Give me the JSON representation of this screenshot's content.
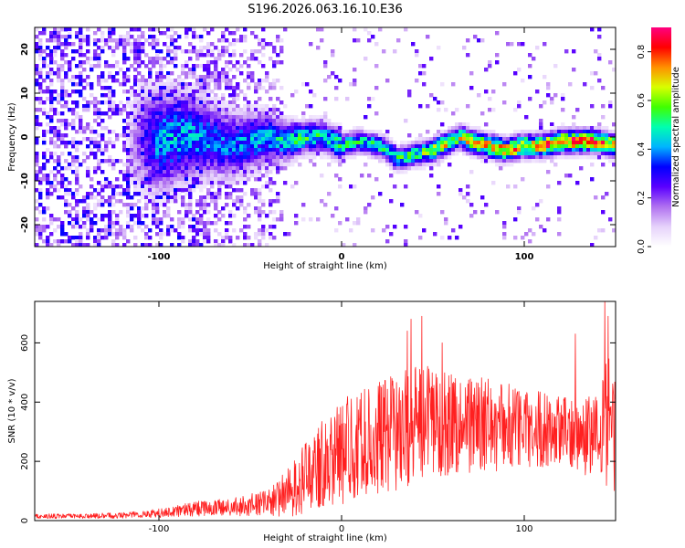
{
  "title": "S196.2026.063.16.10.E36",
  "chart_data": [
    {
      "type": "heatmap",
      "title": "S196.2026.063.16.10.E36",
      "xlabel": "Height of straight line (km)",
      "ylabel": "Frequency (Hz)",
      "xlim": [
        -168,
        150
      ],
      "ylim": [
        -25,
        25
      ],
      "x_ticks": [
        -100,
        0,
        100
      ],
      "x_tick_labels": [
        "-100",
        "0",
        "100"
      ],
      "y_ticks": [
        -20,
        -10,
        0,
        10,
        20
      ],
      "y_tick_labels": [
        "-20",
        "-10",
        "0",
        "10",
        "20"
      ],
      "colorbar": {
        "label": "Normalized spectral amplitude",
        "range": [
          0.0,
          0.9
        ],
        "ticks": [
          0.0,
          0.2,
          0.4,
          0.6,
          0.8
        ],
        "tick_labels": [
          "0.0",
          "0.2",
          "0.4",
          "0.6",
          "0.8"
        ],
        "colormap": [
          "#ffffff",
          "#e6d2fb",
          "#b070f0",
          "#5a00ff",
          "#0000ff",
          "#00b4ff",
          "#00ffb0",
          "#40ff00",
          "#d8ff00",
          "#ff9000",
          "#ff0000",
          "#ff0080"
        ]
      },
      "ridge": {
        "x": [
          -168,
          -120,
          -100,
          -90,
          -80,
          -70,
          -60,
          -50,
          -40,
          -30,
          -20,
          -10,
          0,
          10,
          20,
          25,
          30,
          40,
          50,
          60,
          65,
          70,
          80,
          90,
          100,
          110,
          120,
          130,
          140,
          150
        ],
        "y": [
          0,
          0,
          -1,
          0,
          0,
          -1,
          -2,
          -1,
          0,
          -1,
          0,
          0,
          -2,
          -1,
          -2,
          -3,
          -5,
          -4,
          -3,
          -1,
          0,
          -1,
          -2,
          -3,
          -2,
          -2,
          -1,
          -1,
          -1,
          -2
        ],
        "strength": [
          0,
          0,
          0.45,
          0.45,
          0.45,
          0.4,
          0.4,
          0.45,
          0.45,
          0.5,
          0.55,
          0.5,
          0.55,
          0.5,
          0.55,
          0.55,
          0.55,
          0.55,
          0.7,
          0.7,
          0.7,
          0.75,
          0.8,
          0.8,
          0.8,
          0.8,
          0.85,
          0.85,
          0.85,
          0.8
        ]
      }
    },
    {
      "type": "line",
      "xlabel": "Height of straight line (km)",
      "ylabel": "SNR (10 * v/v)",
      "xlim": [
        -168,
        150
      ],
      "ylim": [
        0,
        740
      ],
      "x_ticks": [
        -100,
        0,
        100
      ],
      "x_tick_labels": [
        "-100",
        "0",
        "100"
      ],
      "y_ticks": [
        0,
        200,
        400,
        600
      ],
      "y_tick_labels": [
        "0",
        "200",
        "400",
        "600"
      ],
      "line_color": "#ff2020",
      "series": [
        {
          "name": "SNR",
          "envelope_x": [
            -168,
            -140,
            -120,
            -100,
            -80,
            -60,
            -40,
            -30,
            -20,
            -10,
            0,
            10,
            20,
            30,
            40,
            50,
            60,
            70,
            80,
            90,
            100,
            110,
            120,
            130,
            140,
            145,
            150
          ],
          "envelope_mean": [
            15,
            15,
            18,
            25,
            40,
            45,
            60,
            90,
            140,
            200,
            230,
            260,
            280,
            300,
            320,
            340,
            330,
            330,
            320,
            320,
            310,
            310,
            300,
            290,
            280,
            330,
            300
          ],
          "envelope_amp": [
            8,
            8,
            10,
            15,
            25,
            30,
            45,
            80,
            120,
            150,
            180,
            180,
            190,
            200,
            200,
            190,
            180,
            170,
            160,
            150,
            140,
            130,
            120,
            120,
            160,
            250,
            200
          ],
          "peaks": [
            [
              36,
              640
            ],
            [
              38,
              680
            ],
            [
              44,
              690
            ],
            [
              55,
              600
            ],
            [
              128,
              630
            ],
            [
              144,
              740
            ],
            [
              146,
              690
            ]
          ]
        }
      ]
    }
  ]
}
